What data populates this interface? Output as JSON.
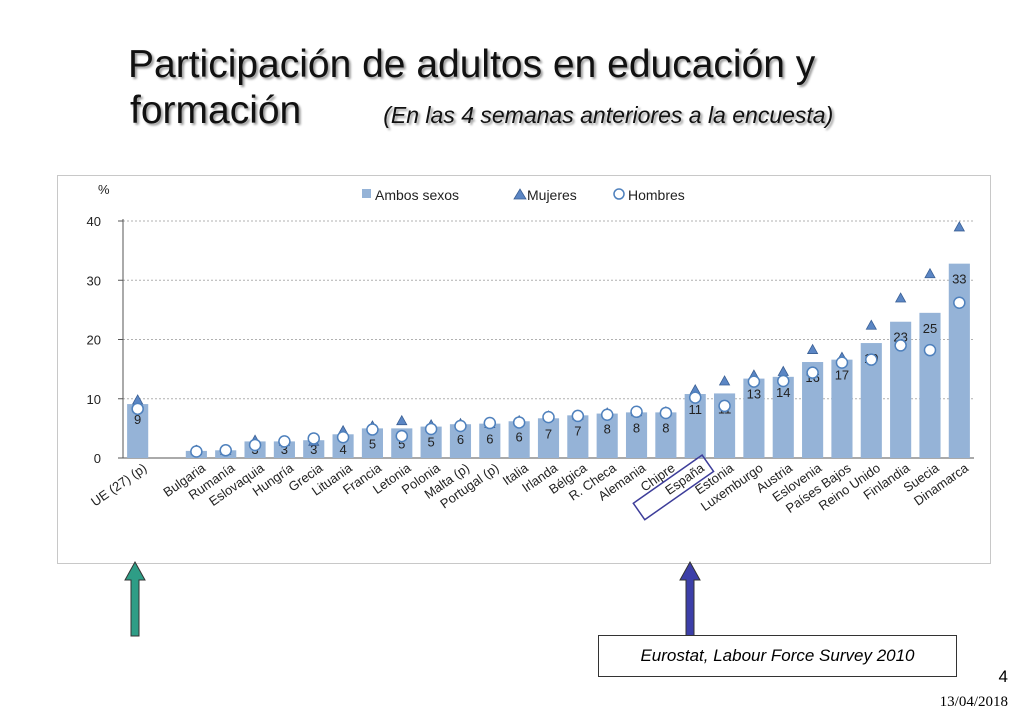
{
  "slide": {
    "title_line1": "Participación de adultos en educación y",
    "title_line2": "formación",
    "subtitle": "(En las 4 semanas anteriores a la encuesta)",
    "source": "Eurostat, Labour Force Survey 2010",
    "page_number": "4",
    "date": "13/04/2018"
  },
  "colors": {
    "bar": "#95b3d7",
    "triangle": "#5b86c4",
    "circle_stroke": "#4f81bd",
    "arrow_green": "#2e9d86",
    "arrow_blue": "#3c3fa8",
    "highlight_box": "#3d3d9a"
  },
  "chart_data": {
    "type": "bar",
    "ylabel": "%",
    "ylim": [
      0,
      40
    ],
    "yticks": [
      "0",
      "10",
      "20",
      "30",
      "40"
    ],
    "grid": true,
    "legend_position": "top",
    "highlight_categories": [
      "España"
    ],
    "categories": [
      "UE (27) (p)",
      "",
      "Bulgaria",
      "Rumanía",
      "Eslovaquia",
      "Hungría",
      "Grecia",
      "Lituania",
      "Francia",
      "Letonia",
      "Polonia",
      "Malta (p)",
      "Portugal (p)",
      "Italia",
      "Irlanda",
      "Bélgica",
      "R. Checa",
      "Alemania",
      "Chipre",
      "España",
      "Estonia",
      "Luxemburgo",
      "Austria",
      "Eslovenia",
      "Países Bajos",
      "Reino Unido",
      "Finlandia",
      "Suecia",
      "Dinamarca"
    ],
    "series": [
      {
        "name": "Ambos sexos",
        "marker": "bar",
        "values": [
          9.1,
          null,
          1.2,
          1.3,
          2.8,
          2.8,
          3.0,
          4.0,
          5.0,
          5.0,
          5.3,
          5.7,
          5.8,
          6.2,
          6.7,
          7.2,
          7.5,
          7.7,
          7.7,
          10.8,
          10.9,
          13.4,
          13.7,
          16.2,
          16.6,
          19.4,
          23.0,
          24.5,
          32.8
        ],
        "labels": [
          "9",
          "",
          "1",
          "1",
          "3",
          "3",
          "3",
          "4",
          "5",
          "5",
          "5",
          "6",
          "6",
          "6",
          "7",
          "7",
          "8",
          "8",
          "8",
          "11",
          "11",
          "13",
          "14",
          "16",
          "17",
          "19",
          "23",
          "25",
          "33"
        ]
      },
      {
        "name": "Mujeres",
        "marker": "triangle",
        "values": [
          9.8,
          null,
          1.3,
          1.3,
          3.0,
          2.8,
          2.8,
          4.6,
          5.4,
          6.3,
          5.6,
          5.8,
          5.8,
          6.3,
          7.1,
          7.2,
          7.6,
          7.8,
          7.8,
          11.5,
          13.0,
          14.0,
          14.6,
          18.3,
          17.0,
          22.4,
          27.0,
          31.1,
          39.0
        ]
      },
      {
        "name": "Hombres",
        "marker": "circle",
        "values": [
          8.3,
          null,
          1.1,
          1.3,
          2.2,
          2.8,
          3.3,
          3.5,
          4.8,
          3.7,
          4.9,
          5.4,
          5.9,
          6.0,
          6.9,
          7.1,
          7.3,
          7.8,
          7.6,
          10.2,
          8.8,
          12.9,
          13.0,
          14.4,
          16.1,
          16.6,
          19.0,
          18.2,
          26.2
        ]
      }
    ]
  }
}
